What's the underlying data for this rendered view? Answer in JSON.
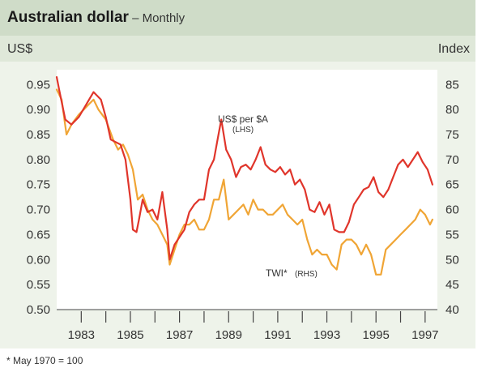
{
  "header": {
    "title": "Australian dollar",
    "separator": " – ",
    "subtitle": "Monthly",
    "left_unit": "US$",
    "right_unit": "Index"
  },
  "footnote": "*  May 1970 = 100",
  "chart_data": {
    "type": "line",
    "title": "Australian dollar – Monthly",
    "x_range": [
      1982.0,
      1997.5
    ],
    "x_ticks": [
      1983,
      1985,
      1987,
      1989,
      1991,
      1993,
      1995,
      1997
    ],
    "x_tick_labels": [
      "1983",
      "1985",
      "1987",
      "1989",
      "1991",
      "1993",
      "1995",
      "1997"
    ],
    "y_left": {
      "label": "US$",
      "range": [
        0.5,
        0.97
      ],
      "ticks": [
        0.5,
        0.55,
        0.6,
        0.65,
        0.7,
        0.75,
        0.8,
        0.85,
        0.9,
        0.95
      ],
      "tick_labels": [
        "0.50",
        "0.55",
        "0.60",
        "0.65",
        "0.70",
        "0.75",
        "0.80",
        "0.85",
        "0.90",
        "0.95"
      ]
    },
    "y_right": {
      "label": "Index",
      "range": [
        40,
        87
      ],
      "ticks": [
        40,
        45,
        50,
        55,
        60,
        65,
        70,
        75,
        80,
        85
      ],
      "tick_labels": [
        "40",
        "45",
        "50",
        "55",
        "60",
        "65",
        "70",
        "75",
        "80",
        "85"
      ]
    },
    "annotations": [
      {
        "series": "US$ per $A",
        "line1": "US$ per $A",
        "line2": "(LHS)"
      },
      {
        "series": "TWI*",
        "line1": "TWI*",
        "line2": "(RHS)"
      }
    ],
    "series": [
      {
        "name": "US$ per $A",
        "axis": "left",
        "color": "#e0352b",
        "x": [
          1982.0,
          1982.1,
          1982.35,
          1982.6,
          1982.9,
          1983.2,
          1983.5,
          1983.8,
          1984.0,
          1984.2,
          1984.4,
          1984.6,
          1984.8,
          1985.0,
          1985.1,
          1985.25,
          1985.35,
          1985.5,
          1985.7,
          1985.9,
          1986.1,
          1986.3,
          1986.5,
          1986.6,
          1986.8,
          1987.0,
          1987.2,
          1987.4,
          1987.6,
          1987.8,
          1988.0,
          1988.2,
          1988.4,
          1988.55,
          1988.7,
          1988.9,
          1989.1,
          1989.3,
          1989.5,
          1989.7,
          1989.9,
          1990.1,
          1990.3,
          1990.5,
          1990.7,
          1990.9,
          1991.1,
          1991.3,
          1991.5,
          1991.7,
          1991.9,
          1992.1,
          1992.3,
          1992.5,
          1992.7,
          1992.9,
          1993.1,
          1993.3,
          1993.5,
          1993.7,
          1993.9,
          1994.1,
          1994.3,
          1994.5,
          1994.7,
          1994.9,
          1995.1,
          1995.3,
          1995.5,
          1995.7,
          1995.9,
          1996.1,
          1996.3,
          1996.5,
          1996.7,
          1996.9,
          1997.1,
          1997.3
        ],
        "y": [
          0.965,
          0.94,
          0.88,
          0.87,
          0.885,
          0.91,
          0.935,
          0.92,
          0.885,
          0.84,
          0.835,
          0.83,
          0.8,
          0.72,
          0.66,
          0.655,
          0.68,
          0.72,
          0.695,
          0.7,
          0.68,
          0.735,
          0.66,
          0.6,
          0.63,
          0.645,
          0.66,
          0.695,
          0.71,
          0.72,
          0.72,
          0.78,
          0.8,
          0.84,
          0.88,
          0.82,
          0.8,
          0.765,
          0.785,
          0.79,
          0.78,
          0.8,
          0.825,
          0.79,
          0.78,
          0.775,
          0.785,
          0.77,
          0.78,
          0.75,
          0.76,
          0.74,
          0.7,
          0.695,
          0.715,
          0.69,
          0.71,
          0.66,
          0.655,
          0.655,
          0.675,
          0.71,
          0.725,
          0.74,
          0.745,
          0.765,
          0.735,
          0.725,
          0.74,
          0.765,
          0.79,
          0.8,
          0.785,
          0.8,
          0.815,
          0.795,
          0.78,
          0.75
        ]
      },
      {
        "name": "TWI*",
        "axis": "right",
        "color": "#f0a535",
        "x": [
          1982.0,
          1982.2,
          1982.4,
          1982.6,
          1982.9,
          1983.1,
          1983.3,
          1983.5,
          1983.7,
          1984.0,
          1984.3,
          1984.5,
          1984.7,
          1984.9,
          1985.1,
          1985.3,
          1985.5,
          1985.7,
          1985.9,
          1986.1,
          1986.3,
          1986.5,
          1986.6,
          1986.8,
          1987.0,
          1987.2,
          1987.4,
          1987.6,
          1987.8,
          1988.0,
          1988.2,
          1988.4,
          1988.6,
          1988.8,
          1989.0,
          1989.2,
          1989.4,
          1989.6,
          1989.8,
          1990.0,
          1990.2,
          1990.4,
          1990.6,
          1990.8,
          1991.0,
          1991.2,
          1991.4,
          1991.6,
          1991.8,
          1992.0,
          1992.2,
          1992.4,
          1992.6,
          1992.8,
          1993.0,
          1993.2,
          1993.4,
          1993.6,
          1993.8,
          1994.0,
          1994.2,
          1994.4,
          1994.6,
          1994.8,
          1995.0,
          1995.2,
          1995.4,
          1995.6,
          1995.8,
          1996.0,
          1996.2,
          1996.4,
          1996.6,
          1996.8,
          1997.0,
          1997.2,
          1997.3
        ],
        "y": [
          84,
          82,
          75,
          77,
          79,
          80,
          81,
          82,
          80,
          78,
          74,
          72,
          73,
          71,
          68,
          62,
          63,
          60,
          58,
          57,
          55,
          53,
          49,
          52,
          55,
          57,
          57,
          58,
          56,
          56,
          58,
          62,
          62,
          66,
          58,
          59,
          60,
          61,
          59,
          62,
          60,
          60,
          59,
          59,
          60,
          61,
          59,
          58,
          57,
          58,
          54,
          51,
          52,
          51,
          51,
          49,
          48,
          53,
          54,
          54,
          53,
          51,
          53,
          51,
          47,
          47,
          52,
          53,
          54,
          55,
          56,
          57,
          58,
          60,
          59,
          57,
          58
        ]
      }
    ]
  }
}
